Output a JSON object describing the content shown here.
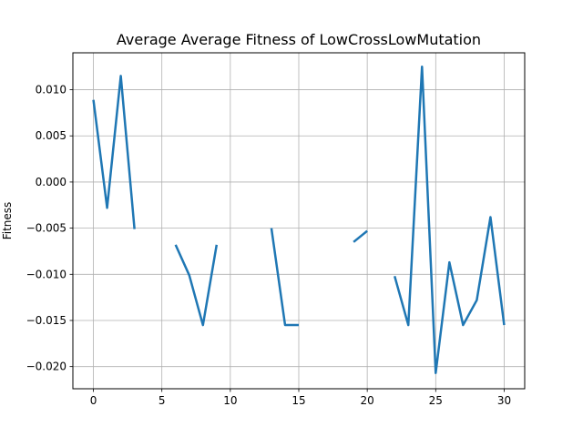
{
  "chart_data": {
    "type": "line",
    "title": "Average Average Fitness of LowCrossLowMutation",
    "xlabel": "",
    "ylabel": "Fitness",
    "xlim": [
      -1.5,
      31.5
    ],
    "ylim": [
      -0.0224,
      0.014
    ],
    "x_ticks": [
      0,
      5,
      10,
      15,
      20,
      25,
      30
    ],
    "x_tick_labels": [
      "0",
      "5",
      "10",
      "15",
      "20",
      "25",
      "30"
    ],
    "y_ticks": [
      -0.02,
      -0.015,
      -0.01,
      -0.005,
      0.0,
      0.005,
      0.01
    ],
    "y_tick_labels": [
      "−0.020",
      "−0.015",
      "−0.010",
      "−0.005",
      "0.000",
      "0.005",
      "0.010"
    ],
    "grid": true,
    "series": [
      {
        "color": "#1f77b4",
        "x": [
          0,
          1,
          2,
          3,
          4,
          5,
          6,
          7,
          8,
          9,
          10,
          11,
          12,
          13,
          14,
          15,
          16,
          17,
          18,
          19,
          20,
          21,
          22,
          23,
          24,
          25,
          26,
          27,
          28,
          29,
          30
        ],
        "y": [
          0.0089,
          -0.0028,
          0.0115,
          -0.0051,
          null,
          null,
          -0.0068,
          -0.0101,
          -0.0155,
          -0.0068,
          null,
          null,
          null,
          -0.005,
          -0.0155,
          -0.0155,
          null,
          null,
          null,
          -0.0065,
          -0.0053,
          null,
          -0.0102,
          -0.0155,
          0.0125,
          -0.0207,
          -0.0087,
          -0.0155,
          -0.0128,
          -0.0038,
          -0.0155
        ]
      }
    ]
  }
}
